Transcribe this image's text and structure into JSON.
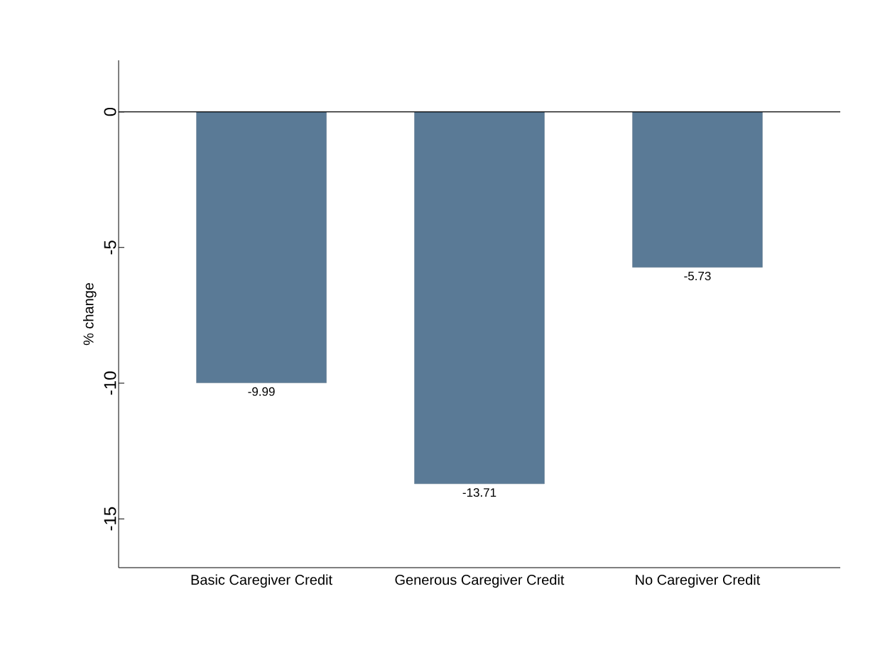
{
  "chart_data": {
    "type": "bar",
    "ylabel": "% change",
    "categories": [
      "Basic Caregiver Credit",
      "Generous Caregiver Credit",
      "No Caregiver Credit"
    ],
    "values": [
      -9.99,
      -13.71,
      -5.73
    ],
    "color": "#5a7a96",
    "data_labels": true,
    "ylim": [
      -16.8,
      1.9
    ],
    "yticks": [
      -15,
      -10,
      -5,
      0
    ],
    "ref_lines": [
      {
        "axis": "y",
        "value": 0,
        "color": "#000000"
      }
    ],
    "grid": false
  }
}
